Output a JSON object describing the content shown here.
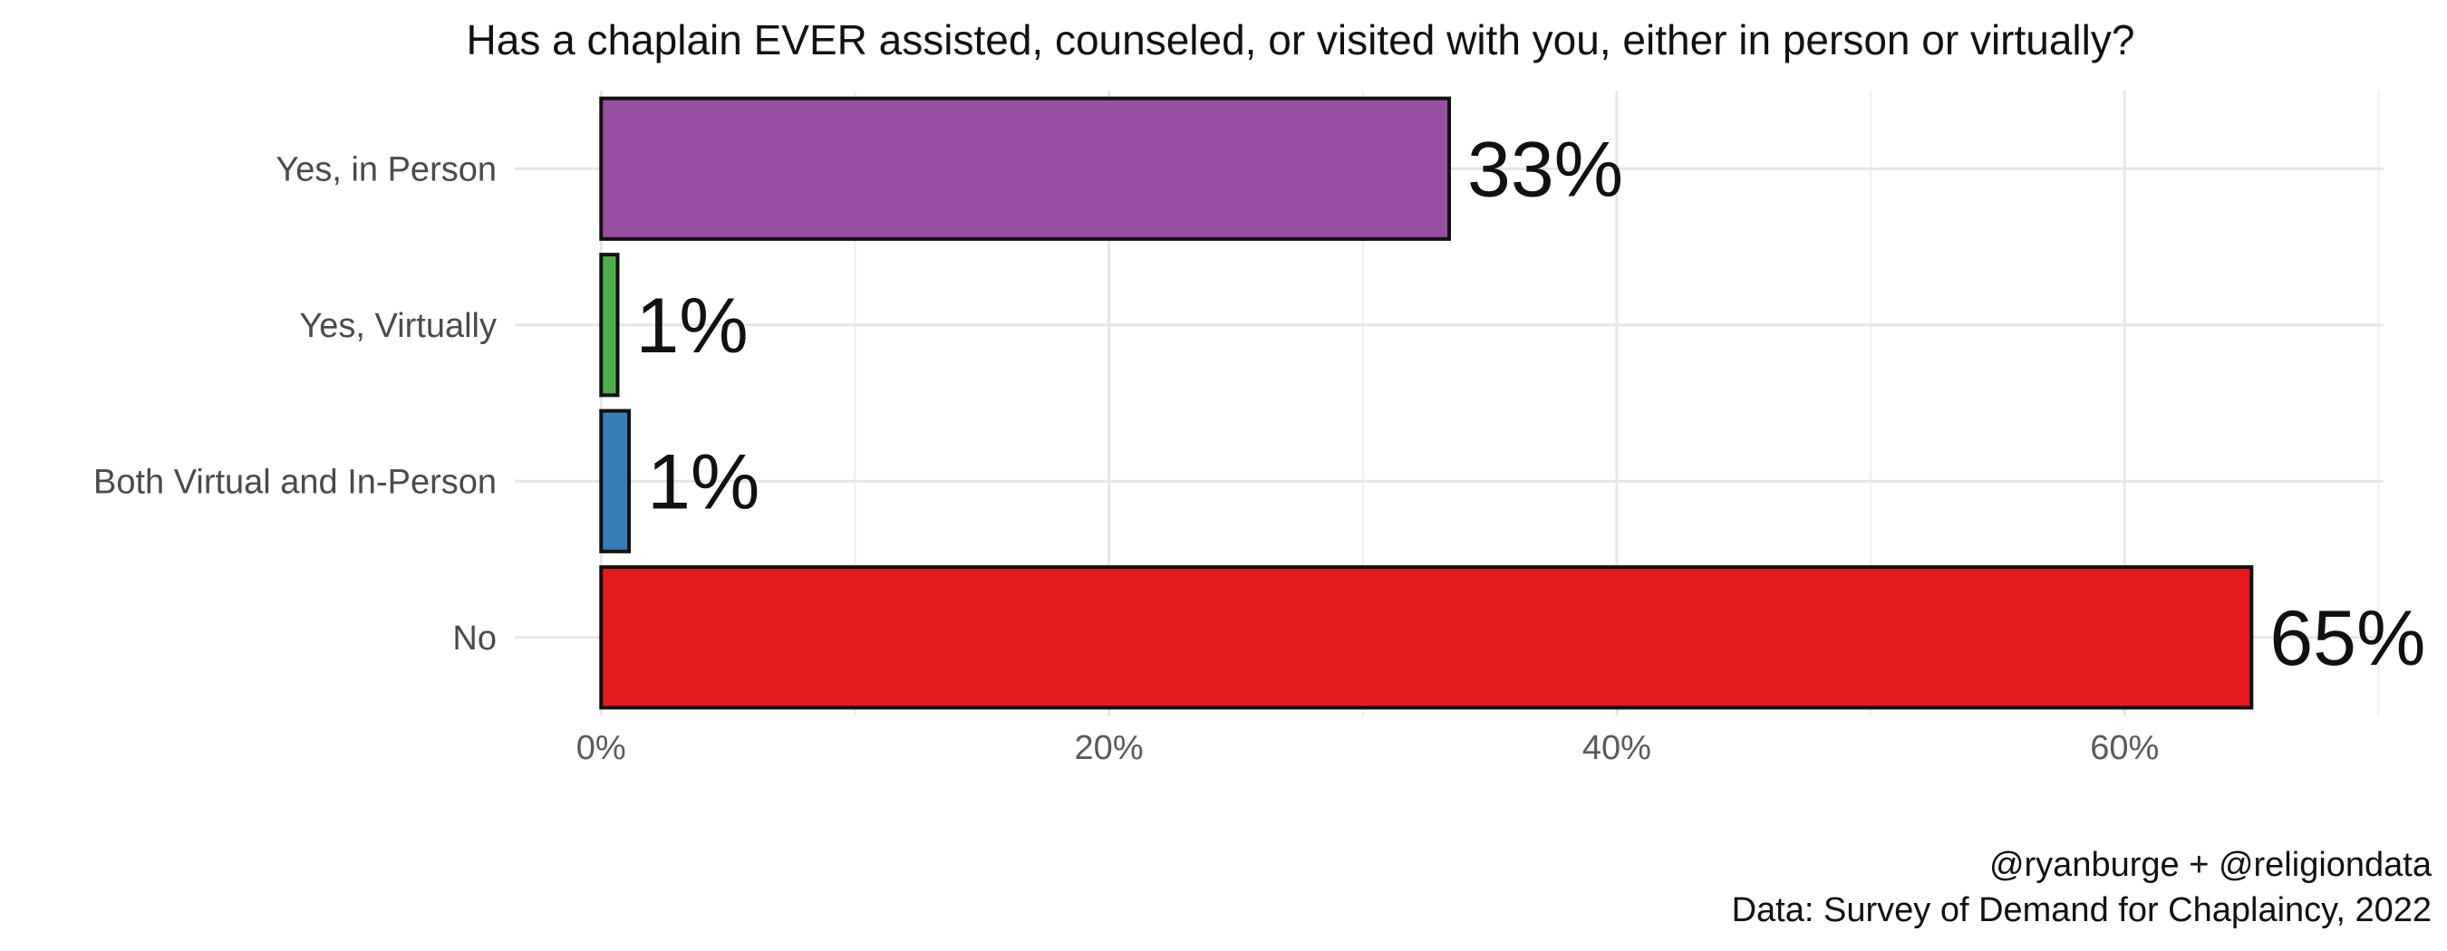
{
  "chart_data": {
    "type": "bar",
    "orientation": "horizontal",
    "title": "Has a chaplain EVER assisted, counseled, or visited with you, either in person or virtually?",
    "categories": [
      "Yes, in Person",
      "Yes, Virtually",
      "Both Virtual and In-Person",
      "No"
    ],
    "values": [
      33.4,
      0.65,
      1.1,
      65.0
    ],
    "data_labels": [
      "33%",
      "1%",
      "1%",
      "65%"
    ],
    "colors": [
      "#984ea3",
      "#4daf4a",
      "#377eb8",
      "#e41a1c"
    ],
    "xlim": [
      -3.4,
      70.2
    ],
    "x_ticks": [
      0,
      20,
      40,
      60
    ],
    "x_tick_labels": [
      "0%",
      "20%",
      "40%",
      "60%"
    ],
    "grid": true,
    "legend": "none",
    "caption": [
      "@ryanburge + @religiondata",
      "Data: Survey of Demand for Chaplaincy, 2022"
    ]
  }
}
